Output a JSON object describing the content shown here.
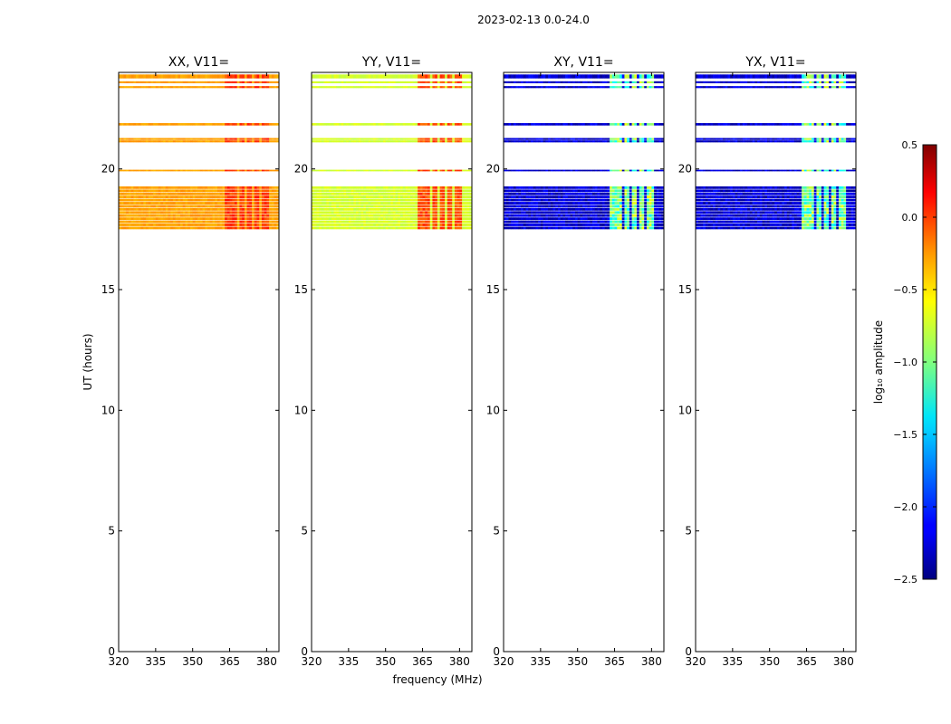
{
  "figure": {
    "suptitle": "2023-02-13 0.0-24.0",
    "ylabel": "UT (hours)",
    "xlabel": "frequency (MHz)"
  },
  "chart_data": {
    "type": "heatmap",
    "x_domain": [
      320,
      385
    ],
    "x_ticks": [
      320,
      335,
      350,
      365,
      380
    ],
    "y_domain": [
      0,
      24
    ],
    "y_ticks": [
      0,
      5,
      10,
      15,
      20
    ],
    "rfi_columns_MHz": [
      [
        363.5,
        367.5
      ],
      [
        369,
        370.5
      ],
      [
        372.5,
        373.5
      ],
      [
        375,
        377
      ],
      [
        378.5,
        380.5
      ]
    ],
    "time_bands_hours": [
      {
        "start": 23.55,
        "end": 23.65,
        "rows": 1
      },
      {
        "start": 23.75,
        "end": 23.95,
        "rows": 1
      },
      {
        "start": 23.35,
        "end": 23.45,
        "rows": 1
      },
      {
        "start": 21.8,
        "end": 21.92,
        "rows": 1
      },
      {
        "start": 21.1,
        "end": 21.3,
        "rows": 2
      },
      {
        "start": 19.9,
        "end": 19.98,
        "rows": 1
      },
      {
        "start": 17.5,
        "end": 19.3,
        "rows": 14
      }
    ],
    "panels": [
      {
        "title": "XX, V11=",
        "base_log10_amp": -0.35,
        "rfi_log10_amp": -0.05,
        "show_ylabel": true,
        "show_xlabel": false
      },
      {
        "title": "YY, V11=",
        "base_log10_amp": -0.75,
        "rfi_log10_amp": -0.1,
        "show_ylabel": false,
        "show_xlabel": true
      },
      {
        "title": "XY, V11=",
        "base_log10_amp": -2.25,
        "rfi_log10_amp": -1.05,
        "show_ylabel": false,
        "show_xlabel": false
      },
      {
        "title": "YX, V11=",
        "base_log10_amp": -2.25,
        "rfi_log10_amp": -1.05,
        "show_ylabel": false,
        "show_xlabel": false
      }
    ],
    "colorbar": {
      "label": "log₁₀ amplitude",
      "range": [
        -2.5,
        0.5
      ],
      "ticks": [
        0.5,
        0.0,
        -0.5,
        -1.0,
        -1.5,
        -2.0,
        -2.5
      ],
      "tick_labels": [
        "0.5",
        "0.0",
        "−0.5",
        "−1.0",
        "−1.5",
        "−2.0",
        "−2.5"
      ],
      "colormap": "jet"
    }
  }
}
